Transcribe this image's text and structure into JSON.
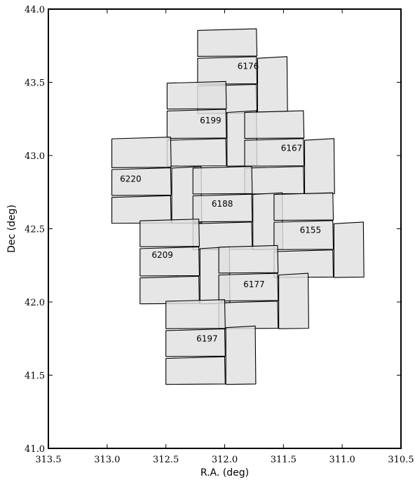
{
  "chart_data": {
    "type": "scatter",
    "title": "",
    "xlabel": "R.A. (deg)",
    "ylabel": "Dec (deg)",
    "xlim": [
      313.5,
      310.5
    ],
    "ylim": [
      41.0,
      44.0
    ],
    "x_reversed": true,
    "grid": false,
    "xticks": [
      "313.5",
      "313.0",
      "312.5",
      "312.0",
      "311.5",
      "311.0",
      "310.5"
    ],
    "yticks": [
      "41.0",
      "41.5",
      "42.0",
      "42.5",
      "43.0",
      "43.5",
      "44.0"
    ],
    "fill_color": "#e0e0e0",
    "edge_color": "#000000",
    "fields": [
      {
        "id": "6176",
        "label": {
          "ra": 311.8,
          "dec": 43.61
        },
        "ccds": [
          {
            "ra": [
              312.23,
              311.73
            ],
            "dec": [
              43.68,
              43.86
            ]
          },
          {
            "ra": [
              312.23,
              311.73
            ],
            "dec": [
              43.49,
              43.67
            ]
          },
          {
            "ra": [
              312.23,
              311.73
            ],
            "dec": [
              43.29,
              43.48
            ]
          },
          {
            "ra": [
              311.72,
              311.47
            ],
            "dec": [
              43.3,
              43.67
            ]
          }
        ]
      },
      {
        "id": "6199",
        "label": {
          "ra": 312.12,
          "dec": 43.24
        },
        "ccds": [
          {
            "ra": [
              312.49,
              311.99
            ],
            "dec": [
              43.32,
              43.5
            ]
          },
          {
            "ra": [
              312.49,
              311.99
            ],
            "dec": [
              43.12,
              43.31
            ]
          },
          {
            "ra": [
              312.49,
              311.99
            ],
            "dec": [
              42.93,
              43.11
            ]
          },
          {
            "ra": [
              311.98,
              311.73
            ],
            "dec": [
              42.93,
              43.3
            ]
          }
        ]
      },
      {
        "id": "6167",
        "label": {
          "ra": 311.43,
          "dec": 43.05
        },
        "ccds": [
          {
            "ra": [
              311.83,
              311.33
            ],
            "dec": [
              43.12,
              43.3
            ]
          },
          {
            "ra": [
              311.83,
              311.33
            ],
            "dec": [
              42.93,
              43.11
            ]
          },
          {
            "ra": [
              311.83,
              311.33
            ],
            "dec": [
              42.74,
              42.92
            ]
          },
          {
            "ra": [
              311.32,
              311.07
            ],
            "dec": [
              42.74,
              43.11
            ]
          }
        ]
      },
      {
        "id": "6220",
        "label": {
          "ra": 312.8,
          "dec": 42.84
        },
        "ccds": [
          {
            "ra": [
              312.96,
              312.46
            ],
            "dec": [
              42.92,
              43.12
            ]
          },
          {
            "ra": [
              312.96,
              312.46
            ],
            "dec": [
              42.73,
              42.91
            ]
          },
          {
            "ra": [
              312.96,
              312.46
            ],
            "dec": [
              42.54,
              42.72
            ]
          },
          {
            "ra": [
              312.45,
              312.2
            ],
            "dec": [
              42.54,
              42.92
            ]
          }
        ]
      },
      {
        "id": "6188",
        "label": {
          "ra": 312.02,
          "dec": 42.67
        },
        "ccds": [
          {
            "ra": [
              312.27,
              311.77
            ],
            "dec": [
              42.74,
              42.92
            ]
          },
          {
            "ra": [
              312.27,
              311.77
            ],
            "dec": [
              42.55,
              42.73
            ]
          },
          {
            "ra": [
              312.27,
              311.77
            ],
            "dec": [
              42.36,
              42.54
            ]
          },
          {
            "ra": [
              311.76,
              311.51
            ],
            "dec": [
              42.36,
              42.74
            ]
          }
        ]
      },
      {
        "id": "6155",
        "label": {
          "ra": 311.27,
          "dec": 42.49
        },
        "ccds": [
          {
            "ra": [
              311.58,
              311.08
            ],
            "dec": [
              42.56,
              42.74
            ]
          },
          {
            "ra": [
              311.58,
              311.08
            ],
            "dec": [
              42.36,
              42.55
            ]
          },
          {
            "ra": [
              311.58,
              311.08
            ],
            "dec": [
              42.17,
              42.35
            ]
          },
          {
            "ra": [
              311.07,
              310.82
            ],
            "dec": [
              42.17,
              42.54
            ]
          }
        ]
      },
      {
        "id": "6209",
        "label": {
          "ra": 312.53,
          "dec": 42.32
        },
        "ccds": [
          {
            "ra": [
              312.72,
              312.22
            ],
            "dec": [
              42.38,
              42.56
            ]
          },
          {
            "ra": [
              312.72,
              312.22
            ],
            "dec": [
              42.18,
              42.37
            ]
          },
          {
            "ra": [
              312.72,
              312.22
            ],
            "dec": [
              41.99,
              42.17
            ]
          },
          {
            "ra": [
              312.21,
              311.96
            ],
            "dec": [
              41.99,
              42.37
            ]
          }
        ]
      },
      {
        "id": "6177",
        "label": {
          "ra": 311.75,
          "dec": 42.12
        },
        "ccds": [
          {
            "ra": [
              312.05,
              311.55
            ],
            "dec": [
              42.2,
              42.38
            ]
          },
          {
            "ra": [
              312.05,
              311.55
            ],
            "dec": [
              42.01,
              42.19
            ]
          },
          {
            "ra": [
              312.05,
              311.55
            ],
            "dec": [
              41.82,
              42.0
            ]
          },
          {
            "ra": [
              311.54,
              311.29
            ],
            "dec": [
              41.82,
              42.19
            ]
          }
        ]
      },
      {
        "id": "6197",
        "label": {
          "ra": 312.15,
          "dec": 41.75
        },
        "ccds": [
          {
            "ra": [
              312.5,
              312.0
            ],
            "dec": [
              41.82,
              42.01
            ]
          },
          {
            "ra": [
              312.5,
              312.0
            ],
            "dec": [
              41.63,
              41.81
            ]
          },
          {
            "ra": [
              312.5,
              312.0
            ],
            "dec": [
              41.44,
              41.62
            ]
          },
          {
            "ra": [
              311.99,
              311.74
            ],
            "dec": [
              41.44,
              41.83
            ]
          }
        ]
      }
    ]
  }
}
